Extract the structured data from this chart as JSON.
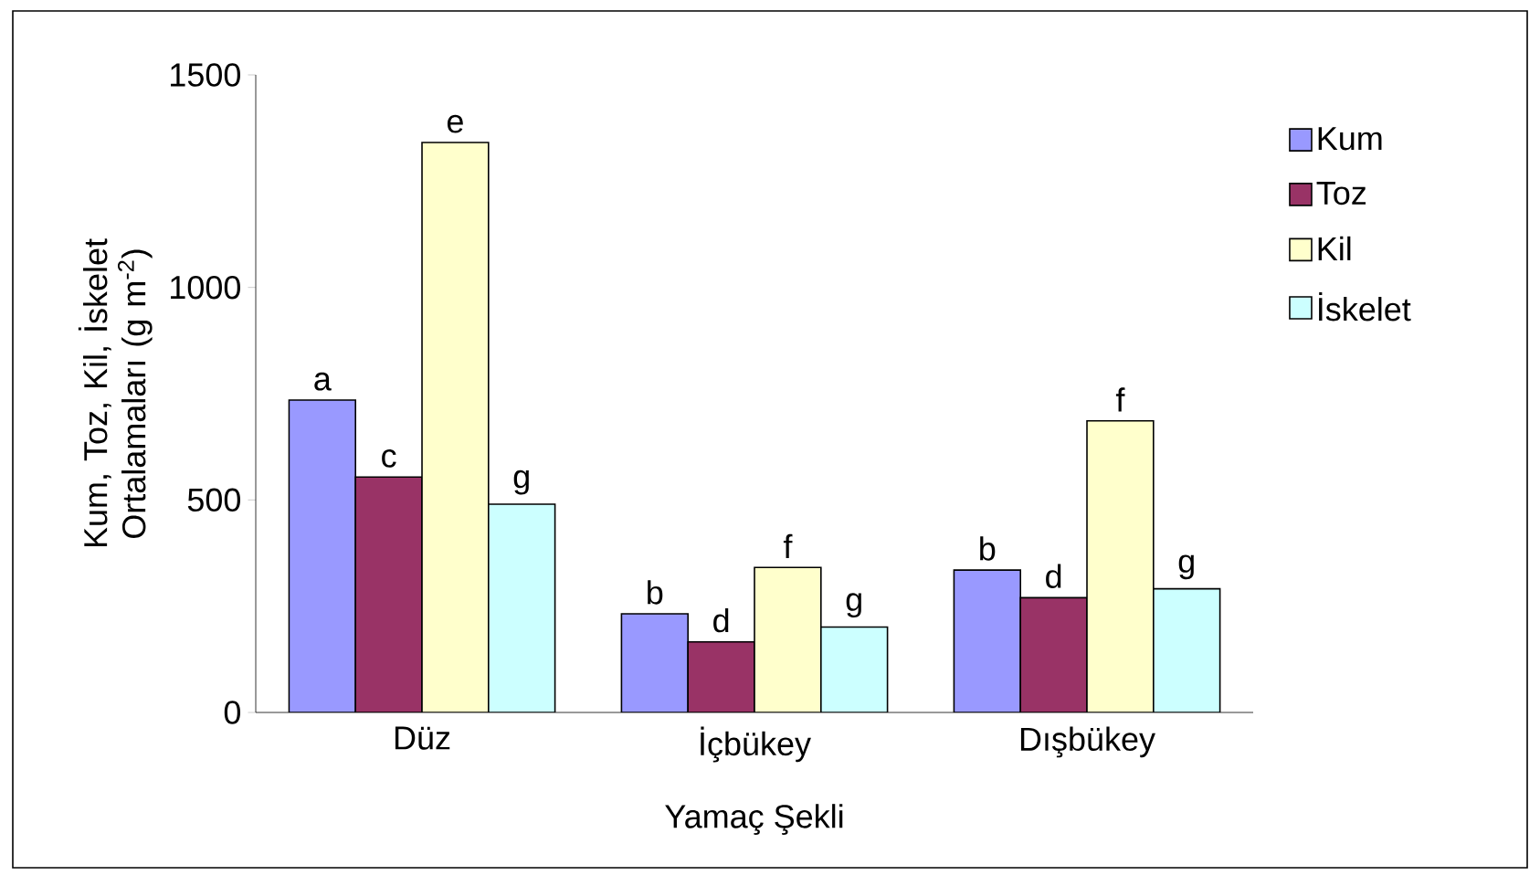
{
  "chart_data": {
    "type": "bar",
    "xlabel": "Yamaç Şekli",
    "ylabel": "Kum, Toz, Kil, İskelet Ortalamaları (g m$^{-2}$)",
    "categories": [
      "Düz",
      "İçbükey",
      "Dışbükey"
    ],
    "series": [
      {
        "name": "Kum",
        "color": "#9999ff",
        "values": [
          735,
          232,
          335
        ],
        "value_labels": [
          "a",
          "b",
          "b"
        ]
      },
      {
        "name": "Toz",
        "color": "#993366",
        "values": [
          554,
          166,
          270
        ],
        "value_labels": [
          "c",
          "d",
          "d"
        ]
      },
      {
        "name": "Kil",
        "color": "#ffffcc",
        "values": [
          1341,
          341,
          686
        ],
        "value_labels": [
          "e",
          "f",
          "f"
        ]
      },
      {
        "name": "İskelet",
        "color": "#ccffff",
        "values": [
          490,
          201,
          291
        ],
        "value_labels": [
          "g",
          "g",
          "g"
        ]
      }
    ],
    "ylim": [
      0,
      1500
    ],
    "yticks": [
      0,
      500,
      1000,
      1500
    ],
    "grid": false,
    "legend": "right"
  }
}
